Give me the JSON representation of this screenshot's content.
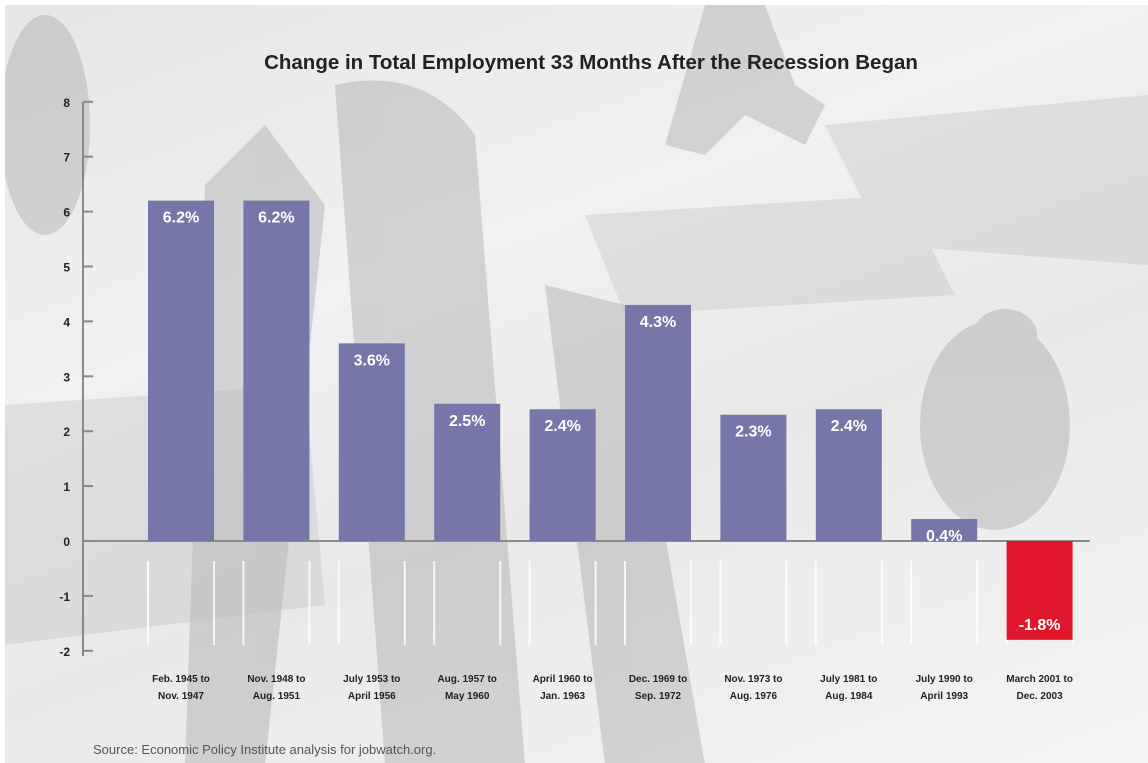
{
  "chart_data": {
    "type": "bar",
    "title": "Change in Total Employment 33 Months After the Recession Began",
    "categories": [
      [
        "Feb. 1945 to",
        "Nov. 1947"
      ],
      [
        "Nov. 1948 to",
        "Aug. 1951"
      ],
      [
        "July 1953 to",
        "April 1956"
      ],
      [
        "Aug. 1957 to",
        "May 1960"
      ],
      [
        "April 1960 to",
        "Jan. 1963"
      ],
      [
        "Dec. 1969 to",
        "Sep. 1972"
      ],
      [
        "Nov. 1973 to",
        "Aug. 1976"
      ],
      [
        "July 1981 to",
        "Aug. 1984"
      ],
      [
        "July 1990 to",
        "April 1993"
      ],
      [
        "March 2001 to",
        "Dec. 2003"
      ]
    ],
    "values": [
      6.2,
      6.2,
      3.6,
      2.5,
      2.4,
      4.3,
      2.3,
      2.4,
      0.4,
      -1.8
    ],
    "value_labels": [
      "6.2%",
      "6.2%",
      "3.6%",
      "2.5%",
      "2.4%",
      "4.3%",
      "2.3%",
      "2.4%",
      "0.4%",
      "-1.8%"
    ],
    "ylim": [
      -2,
      8
    ],
    "yticks": [
      "-2",
      "-1",
      "0",
      "1",
      "2",
      "3",
      "4",
      "5",
      "6",
      "7",
      "8"
    ],
    "xlabel": "",
    "ylabel": "",
    "grid": false,
    "legend": "none",
    "colors": {
      "positive_bar": "#7676a8",
      "negative_bar": "#e0172c",
      "axis": "#888888",
      "bar_label": "#ffffff",
      "tick_label": "#222222"
    }
  },
  "source": "Source: Economic Policy Institute analysis for jobwatch.org."
}
